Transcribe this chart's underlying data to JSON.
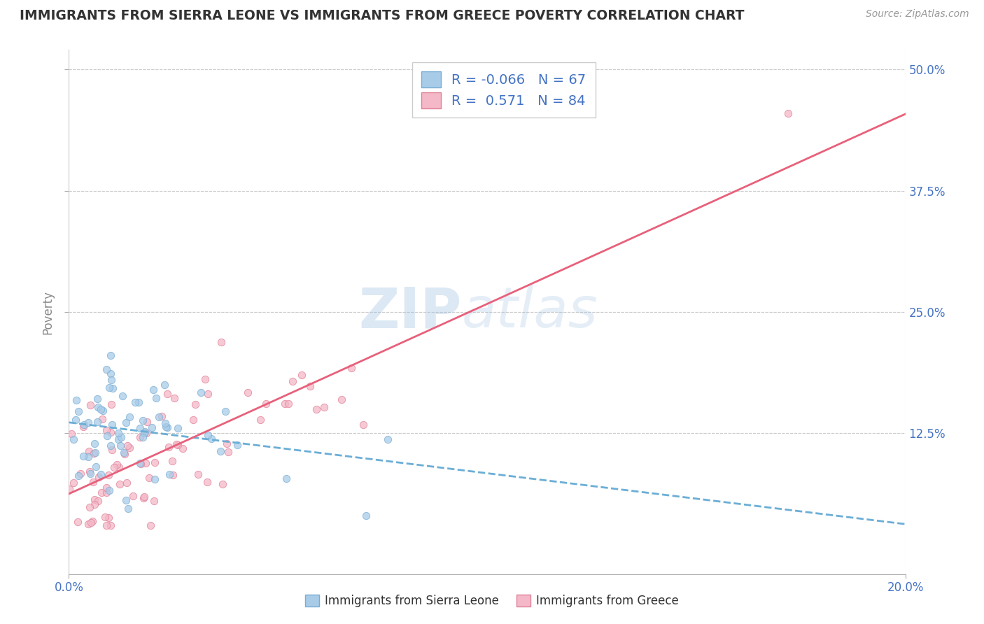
{
  "title": "IMMIGRANTS FROM SIERRA LEONE VS IMMIGRANTS FROM GREECE POVERTY CORRELATION CHART",
  "source": "Source: ZipAtlas.com",
  "ylabel": "Poverty",
  "xlim": [
    0.0,
    0.2
  ],
  "ylim": [
    -0.02,
    0.52
  ],
  "xticks": [
    0.0,
    0.2
  ],
  "xtick_labels": [
    "0.0%",
    "20.0%"
  ],
  "ytick_labels_right": [
    "12.5%",
    "25.0%",
    "37.5%",
    "50.0%"
  ],
  "yticks_right": [
    0.125,
    0.25,
    0.375,
    0.5
  ],
  "sierra_leone_color": "#A8CCE8",
  "sierra_leone_edge": "#7AADD4",
  "greece_color": "#F4B8C8",
  "greece_edge": "#E08098",
  "trend_sierra_color": "#6BAED6",
  "trend_greece_color": "#E8607A",
  "R_sierra": -0.066,
  "N_sierra": 67,
  "R_greece": 0.571,
  "N_greece": 84,
  "legend_label_sierra": "Immigrants from Sierra Leone",
  "legend_label_greece": "Immigrants from Greece",
  "watermark_part1": "ZIP",
  "watermark_part2": "atlas",
  "background_color": "#ffffff",
  "grid_color": "#cccccc",
  "title_color": "#333333",
  "axis_tick_color": "#4472C4",
  "legend_text_color": "#4472C4",
  "ylabel_color": "#888888"
}
